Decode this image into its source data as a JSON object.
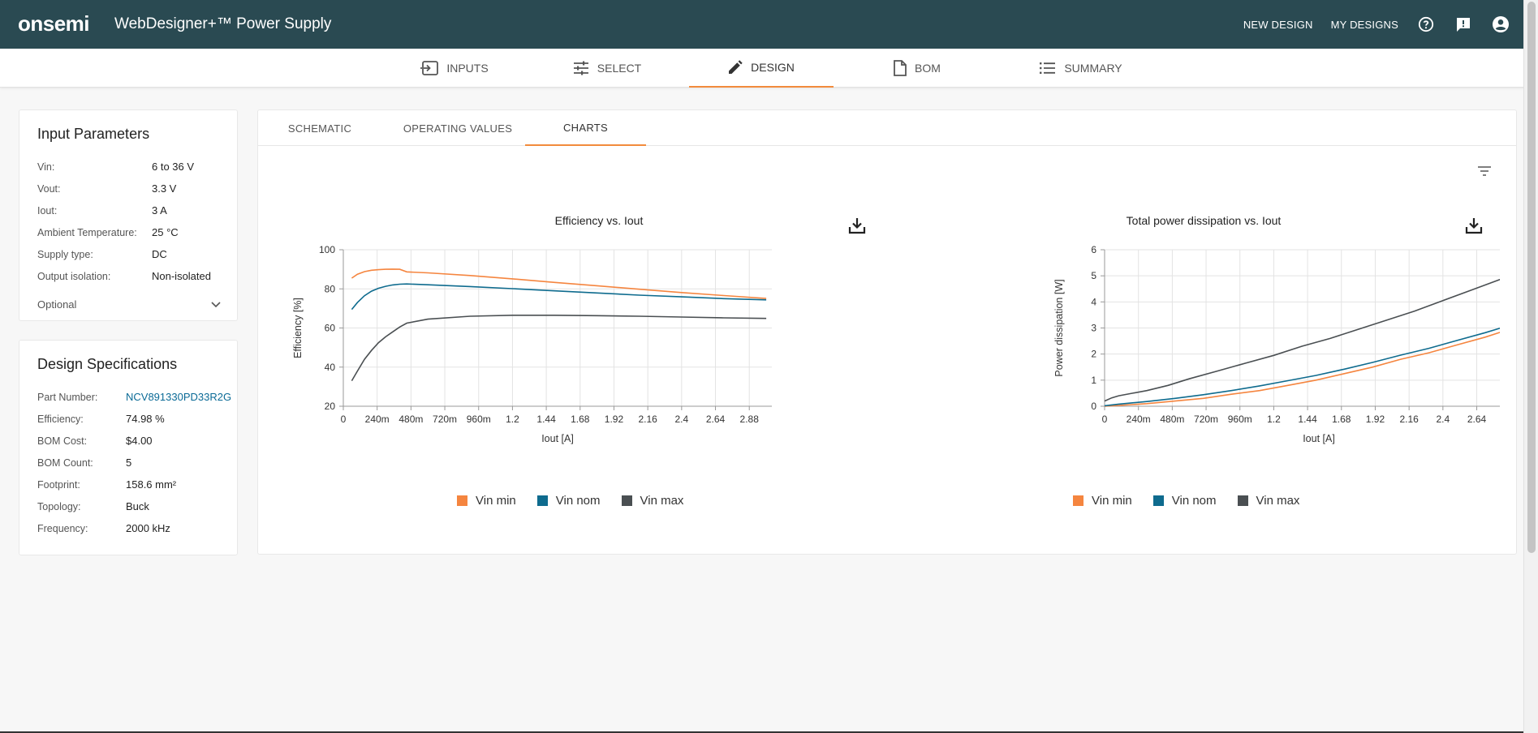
{
  "header": {
    "logo": "onsemi",
    "app_title": "WebDesigner+™ Power Supply",
    "links": [
      "NEW DESIGN",
      "MY DESIGNS"
    ]
  },
  "steps": [
    {
      "label": "INPUTS",
      "icon": "input-icon"
    },
    {
      "label": "SELECT",
      "icon": "sliders-icon"
    },
    {
      "label": "DESIGN",
      "icon": "pencil-icon"
    },
    {
      "label": "BOM",
      "icon": "document-icon"
    },
    {
      "label": "SUMMARY",
      "icon": "list-icon"
    }
  ],
  "active_step": "DESIGN",
  "input_params": {
    "title": "Input Parameters",
    "rows": [
      {
        "label": "Vin:",
        "value": "6 to 36 V"
      },
      {
        "label": "Vout:",
        "value": "3.3 V"
      },
      {
        "label": "Iout:",
        "value": "3 A"
      },
      {
        "label": "Ambient Temperature:",
        "value": "25 °C"
      },
      {
        "label": "Supply type:",
        "value": "DC"
      },
      {
        "label": "Output isolation:",
        "value": "Non-isolated"
      }
    ],
    "optional": "Optional"
  },
  "design_specs": {
    "title": "Design Specifications",
    "rows": [
      {
        "label": "Part Number:",
        "value": "NCV891330PD33R2G"
      },
      {
        "label": "Efficiency:",
        "value": "74.98 %"
      },
      {
        "label": "BOM Cost:",
        "value": "$4.00"
      },
      {
        "label": "BOM Count:",
        "value": "5"
      },
      {
        "label": "Footprint:",
        "value": "158.6 mm²"
      },
      {
        "label": "Topology:",
        "value": "Buck"
      },
      {
        "label": "Frequency:",
        "value": "2000 kHz"
      }
    ]
  },
  "tabs": [
    "SCHEMATIC",
    "OPERATING VALUES",
    "CHARTS"
  ],
  "active_tab": "CHARTS",
  "colors": {
    "vin_min": "#f5853f",
    "vin_nom": "#0e6b8e",
    "vin_max": "#4a4f52",
    "accent": "#f28b3c",
    "header": "#2a4a52"
  },
  "chart_data": [
    {
      "type": "line",
      "title": "Efficiency vs. Iout",
      "xlabel": "Iout [A]",
      "ylabel": "Efficiency [%]",
      "xlim": [
        0,
        3.04
      ],
      "ylim": [
        20,
        100
      ],
      "xticks": [
        "0",
        "240m",
        "480m",
        "720m",
        "960m",
        "1.2",
        "1.44",
        "1.68",
        "1.92",
        "2.16",
        "2.4",
        "2.64",
        "2.88"
      ],
      "yticks": [
        "20",
        "40",
        "60",
        "80",
        "100"
      ],
      "grid": true,
      "legend": "bottom",
      "series": [
        {
          "name": "Vin min",
          "x": [
            0.06,
            0.1,
            0.15,
            0.2,
            0.25,
            0.3,
            0.35,
            0.4,
            0.45,
            0.6,
            0.9,
            1.2,
            1.5,
            1.8,
            2.1,
            2.4,
            2.7,
            3.0
          ],
          "y": [
            85.5,
            87.5,
            88.8,
            89.5,
            89.8,
            90.0,
            90.1,
            90.0,
            88.7,
            88.2,
            86.8,
            85.1,
            83.3,
            81.6,
            79.8,
            78.1,
            76.6,
            75.1
          ]
        },
        {
          "name": "Vin nom",
          "x": [
            0.06,
            0.1,
            0.15,
            0.2,
            0.25,
            0.3,
            0.35,
            0.4,
            0.45,
            0.6,
            0.9,
            1.2,
            1.5,
            1.8,
            2.1,
            2.4,
            2.7,
            3.0
          ],
          "y": [
            69.5,
            73.0,
            76.5,
            78.8,
            80.3,
            81.3,
            82.0,
            82.4,
            82.5,
            82.1,
            81.2,
            80.1,
            79.0,
            77.9,
            76.8,
            75.9,
            75.0,
            74.4
          ]
        },
        {
          "name": "Vin max",
          "x": [
            0.06,
            0.1,
            0.15,
            0.2,
            0.25,
            0.3,
            0.35,
            0.4,
            0.45,
            0.6,
            0.9,
            1.2,
            1.5,
            1.8,
            2.1,
            2.4,
            2.7,
            3.0
          ],
          "y": [
            33.0,
            38.0,
            44.0,
            48.5,
            52.5,
            55.5,
            58.0,
            60.5,
            62.5,
            64.5,
            66.0,
            66.5,
            66.5,
            66.3,
            66.0,
            65.6,
            65.2,
            64.9
          ]
        }
      ]
    },
    {
      "type": "line",
      "title": "Total power dissipation vs. Iout",
      "xlabel": "Iout [A]",
      "ylabel": "Power dissipation [W]",
      "xlim": [
        0,
        3.04
      ],
      "ylim": [
        0,
        6
      ],
      "xticks": [
        "0",
        "240m",
        "480m",
        "720m",
        "960m",
        "1.2",
        "1.44",
        "1.68",
        "1.92",
        "2.16",
        "2.4",
        "2.64",
        "2.88"
      ],
      "yticks": [
        "0",
        "1",
        "2",
        "3",
        "4",
        "5",
        "6"
      ],
      "grid": true,
      "legend": "bottom",
      "series": [
        {
          "name": "Vin min",
          "x": [
            0,
            0.1,
            0.3,
            0.5,
            0.7,
            0.9,
            1.1,
            1.3,
            1.5,
            1.7,
            1.9,
            2.1,
            2.3,
            2.5,
            2.7,
            2.9,
            3.0
          ],
          "y": [
            0.0,
            0.03,
            0.1,
            0.2,
            0.3,
            0.46,
            0.6,
            0.8,
            1.0,
            1.25,
            1.5,
            1.8,
            2.05,
            2.35,
            2.65,
            3.0,
            3.15
          ]
        },
        {
          "name": "Vin nom",
          "x": [
            0,
            0.1,
            0.3,
            0.5,
            0.7,
            0.9,
            1.1,
            1.3,
            1.5,
            1.7,
            1.9,
            2.1,
            2.3,
            2.5,
            2.7,
            2.9,
            3.0
          ],
          "y": [
            0.02,
            0.08,
            0.18,
            0.3,
            0.44,
            0.6,
            0.78,
            0.98,
            1.18,
            1.42,
            1.68,
            1.96,
            2.22,
            2.52,
            2.82,
            3.15,
            3.3
          ]
        },
        {
          "name": "Vin max",
          "x": [
            0,
            0.05,
            0.1,
            0.2,
            0.3,
            0.45,
            0.6,
            0.8,
            1.0,
            1.2,
            1.4,
            1.6,
            1.8,
            2.0,
            2.2,
            2.4,
            2.6,
            2.8,
            3.0
          ],
          "y": [
            0.2,
            0.32,
            0.4,
            0.5,
            0.6,
            0.8,
            1.05,
            1.35,
            1.65,
            1.95,
            2.3,
            2.6,
            2.95,
            3.3,
            3.65,
            4.05,
            4.45,
            4.85,
            5.25
          ]
        }
      ]
    }
  ],
  "legend_labels": [
    "Vin min",
    "Vin nom",
    "Vin max"
  ]
}
